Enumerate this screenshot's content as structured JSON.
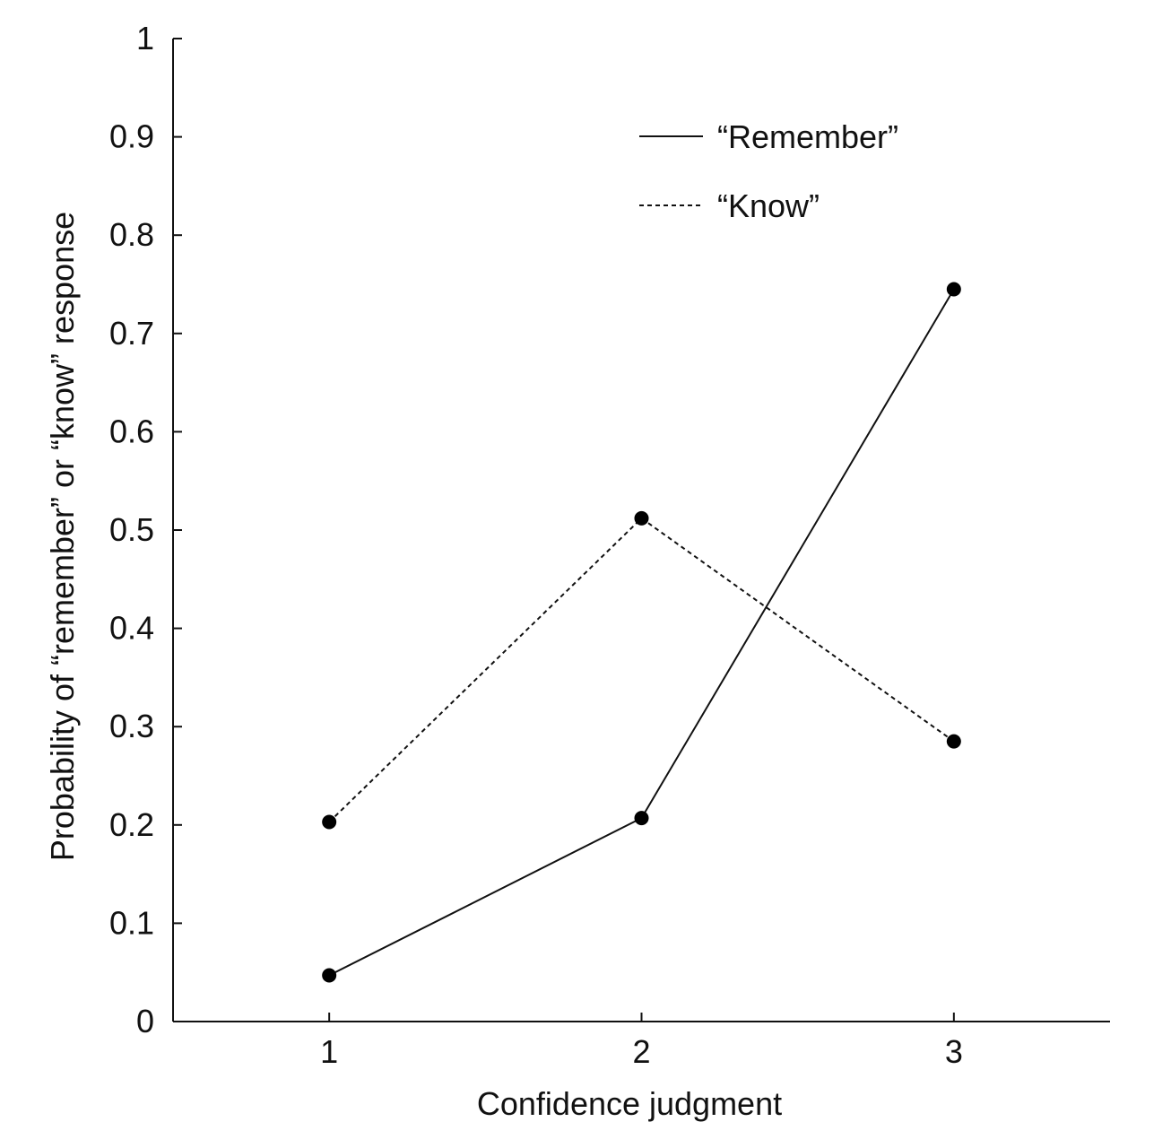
{
  "chart_data": {
    "type": "line",
    "title": "",
    "xlabel": "Confidence judgment",
    "ylabel": "Probability of “remember” or “know” response",
    "x": [
      1,
      2,
      3
    ],
    "xlim": [
      0.5,
      3.5
    ],
    "ylim": [
      0,
      1
    ],
    "x_ticks": [
      "1",
      "2",
      "3"
    ],
    "y_ticks": [
      "0",
      "0.1",
      "0.2",
      "0.3",
      "0.4",
      "0.5",
      "0.6",
      "0.7",
      "0.8",
      "0.9",
      "1"
    ],
    "legend_position": "top-right",
    "grid": false,
    "series": [
      {
        "name": "“Remember”",
        "style": "solid",
        "values": [
          0.047,
          0.207,
          0.745
        ]
      },
      {
        "name": "“Know”",
        "style": "dashed",
        "values": [
          0.203,
          0.512,
          0.285
        ]
      }
    ]
  }
}
